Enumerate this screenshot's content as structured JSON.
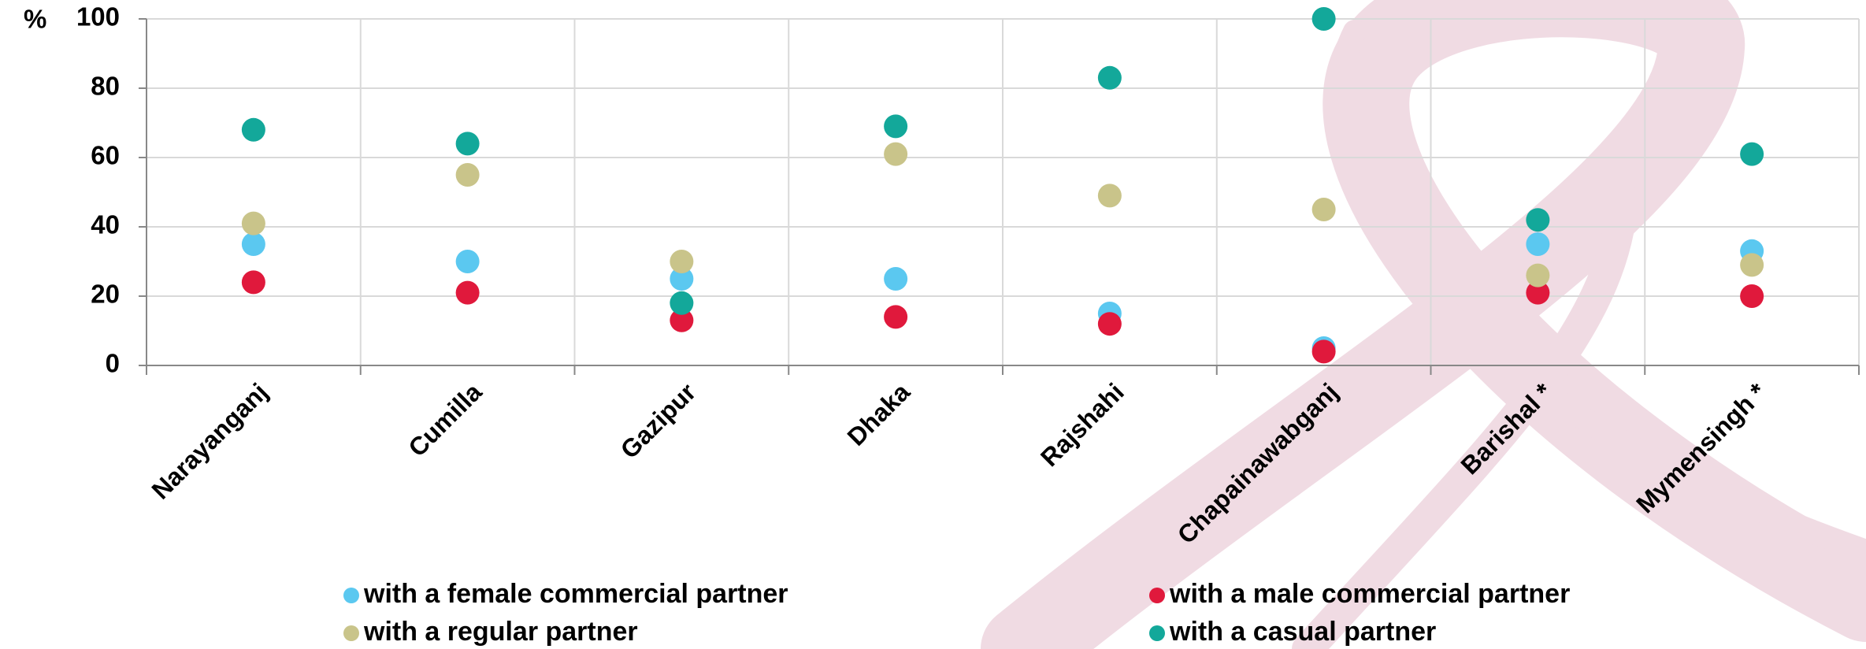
{
  "chart_data": {
    "type": "scatter",
    "y_label": "%",
    "categories": [
      "Narayanganj",
      "Cumilla",
      "Gazipur",
      "Dhaka",
      "Rajshahi",
      "Chapainawabganj",
      "Barishal *",
      "Mymensingh *"
    ],
    "series": [
      {
        "name": "with a female commercial partner",
        "color": "#5bc8f0",
        "values": [
          35,
          30,
          25,
          25,
          15,
          5,
          35,
          33
        ]
      },
      {
        "name": "with a male commercial partner",
        "color": "#e0193c",
        "values": [
          24,
          21,
          13,
          14,
          12,
          4,
          21,
          20
        ]
      },
      {
        "name": "with a regular partner",
        "color": "#c9c48a",
        "values": [
          41,
          55,
          30,
          61,
          49,
          45,
          26,
          29
        ]
      },
      {
        "name": "with a casual partner",
        "color": "#13a89a",
        "values": [
          68,
          64,
          18,
          69,
          83,
          100,
          42,
          61
        ]
      }
    ],
    "ylim": [
      0,
      100
    ],
    "yticks": [
      0,
      20,
      40,
      60,
      80,
      100
    ],
    "grid": true
  }
}
